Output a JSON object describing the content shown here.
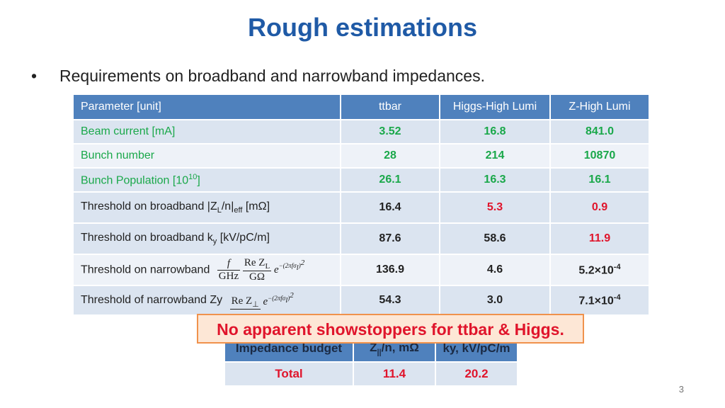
{
  "slide": {
    "title": "Rough estimations",
    "bullet": "Requirements on broadband and narrowband impedances.",
    "page_number": "3"
  },
  "table": {
    "headers": [
      "Parameter [unit]",
      "ttbar",
      "Higgs-High Lumi",
      "Z-High Lumi"
    ],
    "rows": [
      {
        "label": "Beam current [mA]",
        "values": [
          "3.52",
          "16.8",
          "841.0"
        ]
      },
      {
        "label": "Bunch number",
        "values": [
          "28",
          "214",
          "10870"
        ]
      },
      {
        "label_prefix": "Bunch Population [10",
        "label_sup": "10",
        "label_suffix": "]",
        "values": [
          "26.1",
          "16.3",
          "16.1"
        ]
      },
      {
        "label_prefix": "Threshold on broadband |Z",
        "label_sub1": "L",
        "label_mid": "/n|",
        "label_sub2": "eff",
        "label_suffix": " [mΩ]",
        "values": [
          "16.4",
          "5.3",
          "0.9"
        ]
      },
      {
        "label_prefix": "Threshold on broadband k",
        "label_sub": "y",
        "label_suffix": " [kV/pC/m]",
        "values": [
          "87.6",
          "58.6",
          "11.9"
        ]
      },
      {
        "label": "Threshold on narrowband",
        "formula": {
          "num1": "f",
          "den1": "GHz",
          "num2": "Re Z",
          "num2_sub": "L",
          "den2": "GΩ",
          "e": "e",
          "exp": "−(2πfσ",
          "exp_sub": "l",
          "exp_end": ")",
          "exp_sup": "2"
        },
        "values": [
          "136.9",
          "4.6",
          "5.2×10"
        ],
        "z_sup": "-4"
      },
      {
        "label": "Threshold of narrowband Zy",
        "formula": {
          "num": "Re Z",
          "num_sub": "⊥",
          "e": "e",
          "exp": "−(2πfσ",
          "exp_sub": "l",
          "exp_end": ")",
          "exp_sup": "2"
        },
        "values": [
          "54.3",
          "3.0",
          "7.1×10"
        ],
        "z_sup": "-4"
      }
    ]
  },
  "budget": {
    "headers": [
      "Impedance budget",
      "Z",
      "||",
      "/n, mΩ",
      "ky, kV/pC/m"
    ],
    "row": [
      "Total",
      "11.4",
      "20.2"
    ]
  },
  "callout": "No apparent showstoppers for  ttbar & Higgs."
}
